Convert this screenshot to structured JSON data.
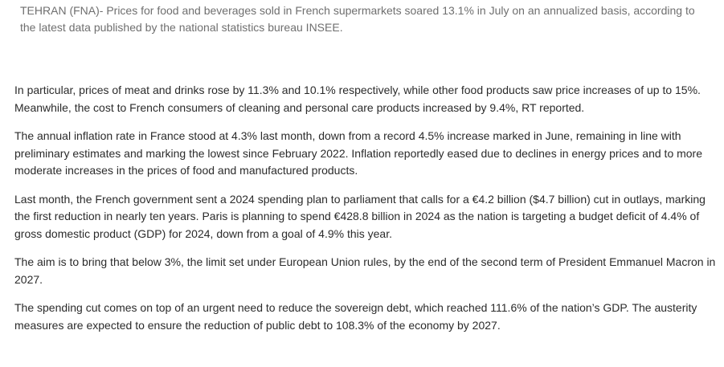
{
  "article": {
    "lead": "TEHRAN (FNA)- Prices for food and beverages sold in French supermarkets soared 13.1% in July on an annualized basis, according to the latest data published by the national statistics bureau INSEE.",
    "paragraphs": [
      "In particular, prices of meat and drinks rose by 11.3% and 10.1% respectively, while other food products saw price increases of up to 15%. Meanwhile, the cost to French consumers of cleaning and personal care products increased by 9.4%, RT reported.",
      "The annual inflation rate in France stood at 4.3% last month, down from a record 4.5% increase marked in June, remaining in line with preliminary estimates and marking the lowest since February 2022. Inflation reportedly eased due to declines in energy prices and to more moderate increases in the prices of food and manufactured products.",
      "Last month, the French government sent a 2024 spending plan to parliament that calls for a €4.2 billion ($4.7 billion) cut in outlays, marking the first reduction in nearly ten years. Paris is planning to spend €428.8 billion in 2024 as the nation is targeting a budget deficit of 4.4% of gross domestic product (GDP) for 2024, down from a goal of 4.9% this year.",
      "The aim is to bring that below 3%, the limit set under European Union rules, by the end of the second term of President Emmanuel Macron in 2027.",
      "The spending cut comes on top of an urgent need to reduce the sovereign debt, which reached 111.6% of the nation’s GDP. The austerity measures are expected to ensure the reduction of public debt to 108.3% of the economy by 2027."
    ]
  }
}
